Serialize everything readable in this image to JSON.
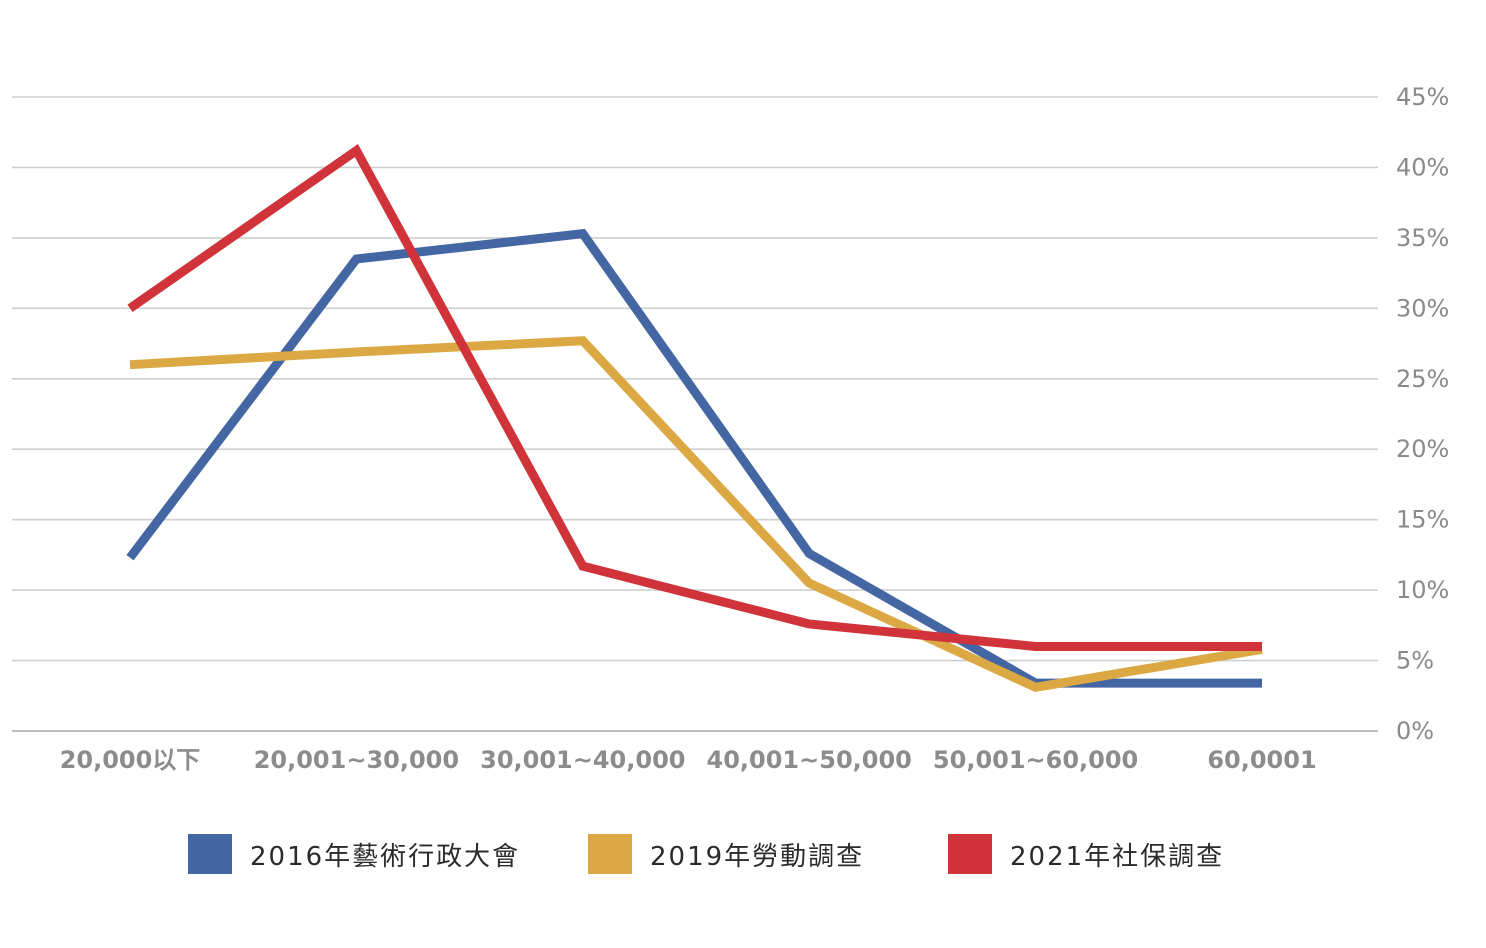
{
  "chart_data": {
    "type": "line",
    "title": "",
    "xlabel": "",
    "ylabel": "",
    "categories": [
      "20,000以下",
      "20,001~30,000",
      "30,001~40,000",
      "40,001~50,000",
      "50,001~60,000",
      "60,0001"
    ],
    "y_ticks": [
      "0%",
      "5%",
      "10%",
      "15%",
      "20%",
      "25%",
      "30%",
      "35%",
      "40%",
      "45%"
    ],
    "ylim": [
      0,
      45
    ],
    "y_unit": "%",
    "grid": true,
    "y_axis_side": "right",
    "legend_position": "bottom",
    "series": [
      {
        "name": "2016年藝術行政大會",
        "color": "#4467a3",
        "values": [
          12.3,
          33.5,
          35.3,
          12.6,
          3.4,
          3.4
        ]
      },
      {
        "name": "2019年勞動調查",
        "color": "#dba844",
        "values": [
          26.0,
          26.9,
          27.7,
          10.5,
          3.1,
          5.8
        ]
      },
      {
        "name": "2021年社保調查",
        "color": "#d0343a",
        "values": [
          30.0,
          41.2,
          11.7,
          7.6,
          6.0,
          6.0
        ]
      }
    ]
  }
}
